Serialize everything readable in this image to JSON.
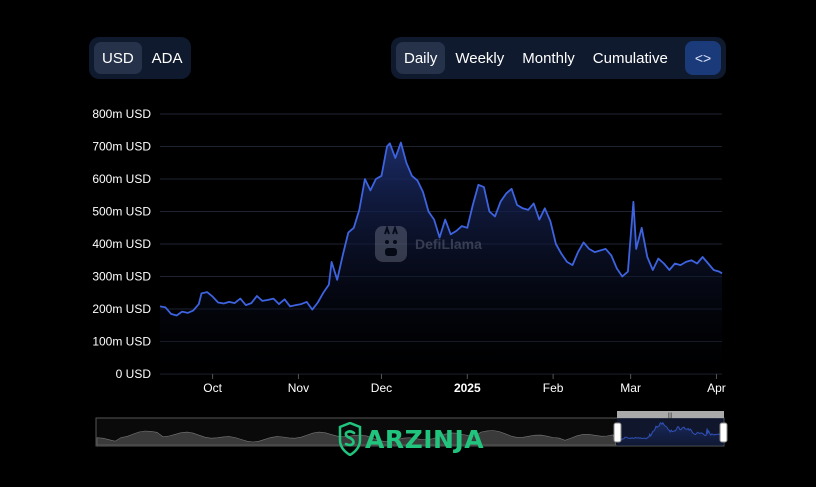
{
  "currency_toggle": {
    "options": [
      "USD",
      "ADA"
    ],
    "selected": "USD"
  },
  "period_toggle": {
    "options": [
      "Daily",
      "Weekly",
      "Monthly",
      "Cumulative"
    ],
    "selected": "Daily"
  },
  "embed_button": {
    "label": "<>",
    "icon": "code-embed-icon"
  },
  "watermark": {
    "text": "DefiLlama"
  },
  "brand": {
    "text": "ARZINJA",
    "color": "#21c47d"
  },
  "colors": {
    "line": "#3d63e0",
    "fill_top": "#1c2d6b",
    "grid": "#1e2330",
    "background": "#000000"
  },
  "chart_data": {
    "type": "area",
    "title": "",
    "xlabel": "",
    "ylabel": "",
    "y_unit": "m USD",
    "ylim": [
      0,
      800
    ],
    "y_ticks": [
      {
        "value": 0,
        "label": "0 USD"
      },
      {
        "value": 100,
        "label": "100m USD"
      },
      {
        "value": 200,
        "label": "200m USD"
      },
      {
        "value": 300,
        "label": "300m USD"
      },
      {
        "value": 400,
        "label": "400m USD"
      },
      {
        "value": 500,
        "label": "500m USD"
      },
      {
        "value": 600,
        "label": "600m USD"
      },
      {
        "value": 700,
        "label": "700m USD"
      },
      {
        "value": 800,
        "label": "800m USD"
      }
    ],
    "x_ticks": [
      {
        "date": "2024-10-01",
        "label": "Oct",
        "bold": false
      },
      {
        "date": "2024-11-01",
        "label": "Nov",
        "bold": false
      },
      {
        "date": "2024-12-01",
        "label": "Dec",
        "bold": false
      },
      {
        "date": "2025-01-01",
        "label": "2025",
        "bold": true
      },
      {
        "date": "2025-02-01",
        "label": "Feb",
        "bold": false
      },
      {
        "date": "2025-03-01",
        "label": "Mar",
        "bold": false
      },
      {
        "date": "2025-04-01",
        "label": "Apr",
        "bold": false
      }
    ],
    "xlim": [
      "2024-09-12",
      "2025-04-03"
    ],
    "grid": true,
    "series": [
      {
        "values": [
          [
            "2024-09-12",
            208
          ],
          [
            "2024-09-14",
            205
          ],
          [
            "2024-09-16",
            185
          ],
          [
            "2024-09-18",
            180
          ],
          [
            "2024-09-20",
            192
          ],
          [
            "2024-09-22",
            188
          ],
          [
            "2024-09-24",
            195
          ],
          [
            "2024-09-26",
            215
          ],
          [
            "2024-09-27",
            248
          ],
          [
            "2024-09-29",
            252
          ],
          [
            "2024-10-01",
            238
          ],
          [
            "2024-10-03",
            220
          ],
          [
            "2024-10-05",
            217
          ],
          [
            "2024-10-07",
            222
          ],
          [
            "2024-10-09",
            218
          ],
          [
            "2024-10-11",
            232
          ],
          [
            "2024-10-13",
            212
          ],
          [
            "2024-10-15",
            218
          ],
          [
            "2024-10-17",
            240
          ],
          [
            "2024-10-19",
            225
          ],
          [
            "2024-10-21",
            228
          ],
          [
            "2024-10-23",
            232
          ],
          [
            "2024-10-25",
            215
          ],
          [
            "2024-10-27",
            230
          ],
          [
            "2024-10-29",
            208
          ],
          [
            "2024-10-31",
            212
          ],
          [
            "2024-11-02",
            215
          ],
          [
            "2024-11-04",
            222
          ],
          [
            "2024-11-06",
            198
          ],
          [
            "2024-11-08",
            220
          ],
          [
            "2024-11-10",
            250
          ],
          [
            "2024-11-12",
            275
          ],
          [
            "2024-11-13",
            345
          ],
          [
            "2024-11-15",
            290
          ],
          [
            "2024-11-17",
            365
          ],
          [
            "2024-11-19",
            435
          ],
          [
            "2024-11-21",
            450
          ],
          [
            "2024-11-23",
            505
          ],
          [
            "2024-11-25",
            600
          ],
          [
            "2024-11-27",
            565
          ],
          [
            "2024-11-29",
            600
          ],
          [
            "2024-12-01",
            610
          ],
          [
            "2024-12-03",
            700
          ],
          [
            "2024-12-04",
            710
          ],
          [
            "2024-12-06",
            665
          ],
          [
            "2024-12-08",
            712
          ],
          [
            "2024-12-10",
            650
          ],
          [
            "2024-12-12",
            610
          ],
          [
            "2024-12-14",
            595
          ],
          [
            "2024-12-16",
            560
          ],
          [
            "2024-12-18",
            500
          ],
          [
            "2024-12-20",
            475
          ],
          [
            "2024-12-22",
            420
          ],
          [
            "2024-12-24",
            475
          ],
          [
            "2024-12-26",
            430
          ],
          [
            "2024-12-28",
            440
          ],
          [
            "2024-12-30",
            455
          ],
          [
            "2025-01-01",
            450
          ],
          [
            "2025-01-03",
            520
          ],
          [
            "2025-01-05",
            582
          ],
          [
            "2025-01-07",
            575
          ],
          [
            "2025-01-09",
            500
          ],
          [
            "2025-01-11",
            485
          ],
          [
            "2025-01-13",
            530
          ],
          [
            "2025-01-15",
            555
          ],
          [
            "2025-01-17",
            570
          ],
          [
            "2025-01-19",
            520
          ],
          [
            "2025-01-21",
            510
          ],
          [
            "2025-01-23",
            505
          ],
          [
            "2025-01-25",
            525
          ],
          [
            "2025-01-27",
            475
          ],
          [
            "2025-01-29",
            510
          ],
          [
            "2025-01-31",
            470
          ],
          [
            "2025-02-02",
            400
          ],
          [
            "2025-02-04",
            370
          ],
          [
            "2025-02-06",
            345
          ],
          [
            "2025-02-08",
            335
          ],
          [
            "2025-02-10",
            375
          ],
          [
            "2025-02-12",
            405
          ],
          [
            "2025-02-14",
            385
          ],
          [
            "2025-02-16",
            375
          ],
          [
            "2025-02-18",
            380
          ],
          [
            "2025-02-20",
            385
          ],
          [
            "2025-02-22",
            365
          ],
          [
            "2025-02-24",
            325
          ],
          [
            "2025-02-26",
            300
          ],
          [
            "2025-02-28",
            315
          ],
          [
            "2025-03-02",
            530
          ],
          [
            "2025-03-03",
            385
          ],
          [
            "2025-03-05",
            450
          ],
          [
            "2025-03-07",
            360
          ],
          [
            "2025-03-09",
            320
          ],
          [
            "2025-03-11",
            355
          ],
          [
            "2025-03-13",
            340
          ],
          [
            "2025-03-15",
            320
          ],
          [
            "2025-03-17",
            340
          ],
          [
            "2025-03-19",
            335
          ],
          [
            "2025-03-21",
            345
          ],
          [
            "2025-03-23",
            350
          ],
          [
            "2025-03-25",
            340
          ],
          [
            "2025-03-27",
            360
          ],
          [
            "2025-03-29",
            340
          ],
          [
            "2025-03-31",
            320
          ],
          [
            "2025-04-02",
            315
          ],
          [
            "2025-04-03",
            310
          ]
        ]
      }
    ]
  }
}
